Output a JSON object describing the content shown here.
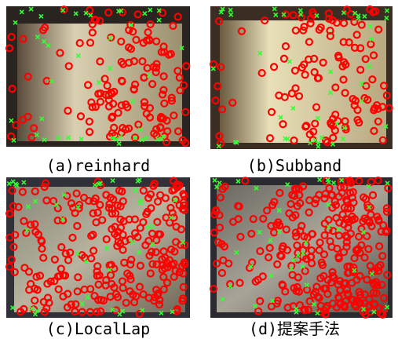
{
  "figure": {
    "captions": [
      "(a)reinhard",
      "(b)Subband",
      "(c)LocalLap",
      "(d)提案手法"
    ]
  }
}
